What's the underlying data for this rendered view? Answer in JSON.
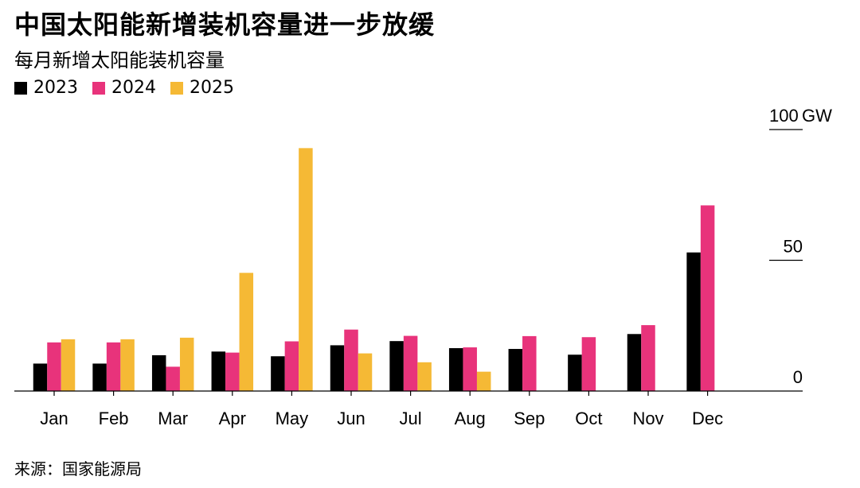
{
  "title": "中国太阳能新增装机容量进一步放缓",
  "subtitle": "每月新增太阳能装机容量",
  "source": "来源：国家能源局",
  "colors": {
    "2023": "#000000",
    "2024": "#e8337b",
    "2025": "#f5b935"
  },
  "chart_data": {
    "type": "bar",
    "title": "中国太阳能新增装机容量进一步放缓",
    "subtitle": "每月新增太阳能装机容量",
    "unit": "GW",
    "categories": [
      "Jan",
      "Feb",
      "Mar",
      "Apr",
      "May",
      "Jun",
      "Jul",
      "Aug",
      "Sep",
      "Oct",
      "Nov",
      "Dec"
    ],
    "series": [
      {
        "name": "2023",
        "values": [
          10.5,
          10.5,
          13.7,
          15.1,
          13.3,
          17.5,
          19.1,
          16.4,
          16.1,
          13.9,
          21.8,
          53.0
        ]
      },
      {
        "name": "2024",
        "values": [
          18.6,
          18.6,
          9.3,
          14.7,
          19.0,
          23.5,
          21.1,
          16.7,
          21.0,
          20.6,
          25.2,
          71.0
        ]
      },
      {
        "name": "2025",
        "values": [
          19.8,
          19.8,
          20.4,
          45.2,
          92.9,
          14.4,
          11.0,
          7.4,
          null,
          null,
          null,
          null
        ]
      }
    ],
    "y_ticks": [
      {
        "value": 0,
        "label": "0"
      },
      {
        "value": 50,
        "label": "50"
      },
      {
        "value": 100,
        "label": "100"
      }
    ],
    "y_unit_label": "GW",
    "ylim": [
      0,
      100
    ],
    "legend": [
      "2023",
      "2024",
      "2025"
    ],
    "legend_position": "top-left"
  }
}
